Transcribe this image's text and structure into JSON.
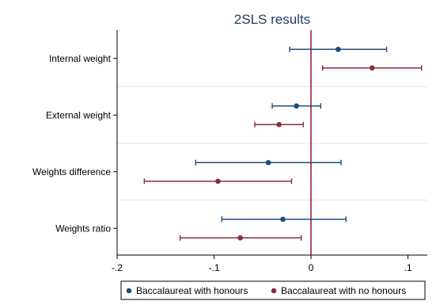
{
  "chart_data": {
    "type": "coefficient-plot",
    "title": "2SLS results",
    "xlim": [
      -0.2,
      0.12
    ],
    "x_ticks": [
      -0.2,
      -0.1,
      0,
      0.1
    ],
    "x_tick_labels": [
      "-.2",
      "-.1",
      "0",
      ".1"
    ],
    "reference_line": 0,
    "categories": [
      "Internal weight",
      "External weight",
      "Weights difference",
      "Weights ratio"
    ],
    "series": [
      {
        "name": "Baccalaureat with honours",
        "color": "#1f4e79",
        "points": [
          {
            "estimate": 0.028,
            "ci_low": -0.022,
            "ci_high": 0.078
          },
          {
            "estimate": -0.015,
            "ci_low": -0.04,
            "ci_high": 0.01
          },
          {
            "estimate": -0.044,
            "ci_low": -0.119,
            "ci_high": 0.031
          },
          {
            "estimate": -0.029,
            "ci_low": -0.092,
            "ci_high": 0.036
          }
        ]
      },
      {
        "name": "Baccalaureat with no honours",
        "color": "#8b2e3b",
        "points": [
          {
            "estimate": 0.063,
            "ci_low": 0.012,
            "ci_high": 0.114
          },
          {
            "estimate": -0.033,
            "ci_low": -0.058,
            "ci_high": -0.008
          },
          {
            "estimate": -0.096,
            "ci_low": -0.172,
            "ci_high": -0.02
          },
          {
            "estimate": -0.073,
            "ci_low": -0.135,
            "ci_high": -0.01
          }
        ]
      }
    ],
    "reference_line_color": "#a0203a",
    "grid": true,
    "legend_position": "bottom"
  }
}
